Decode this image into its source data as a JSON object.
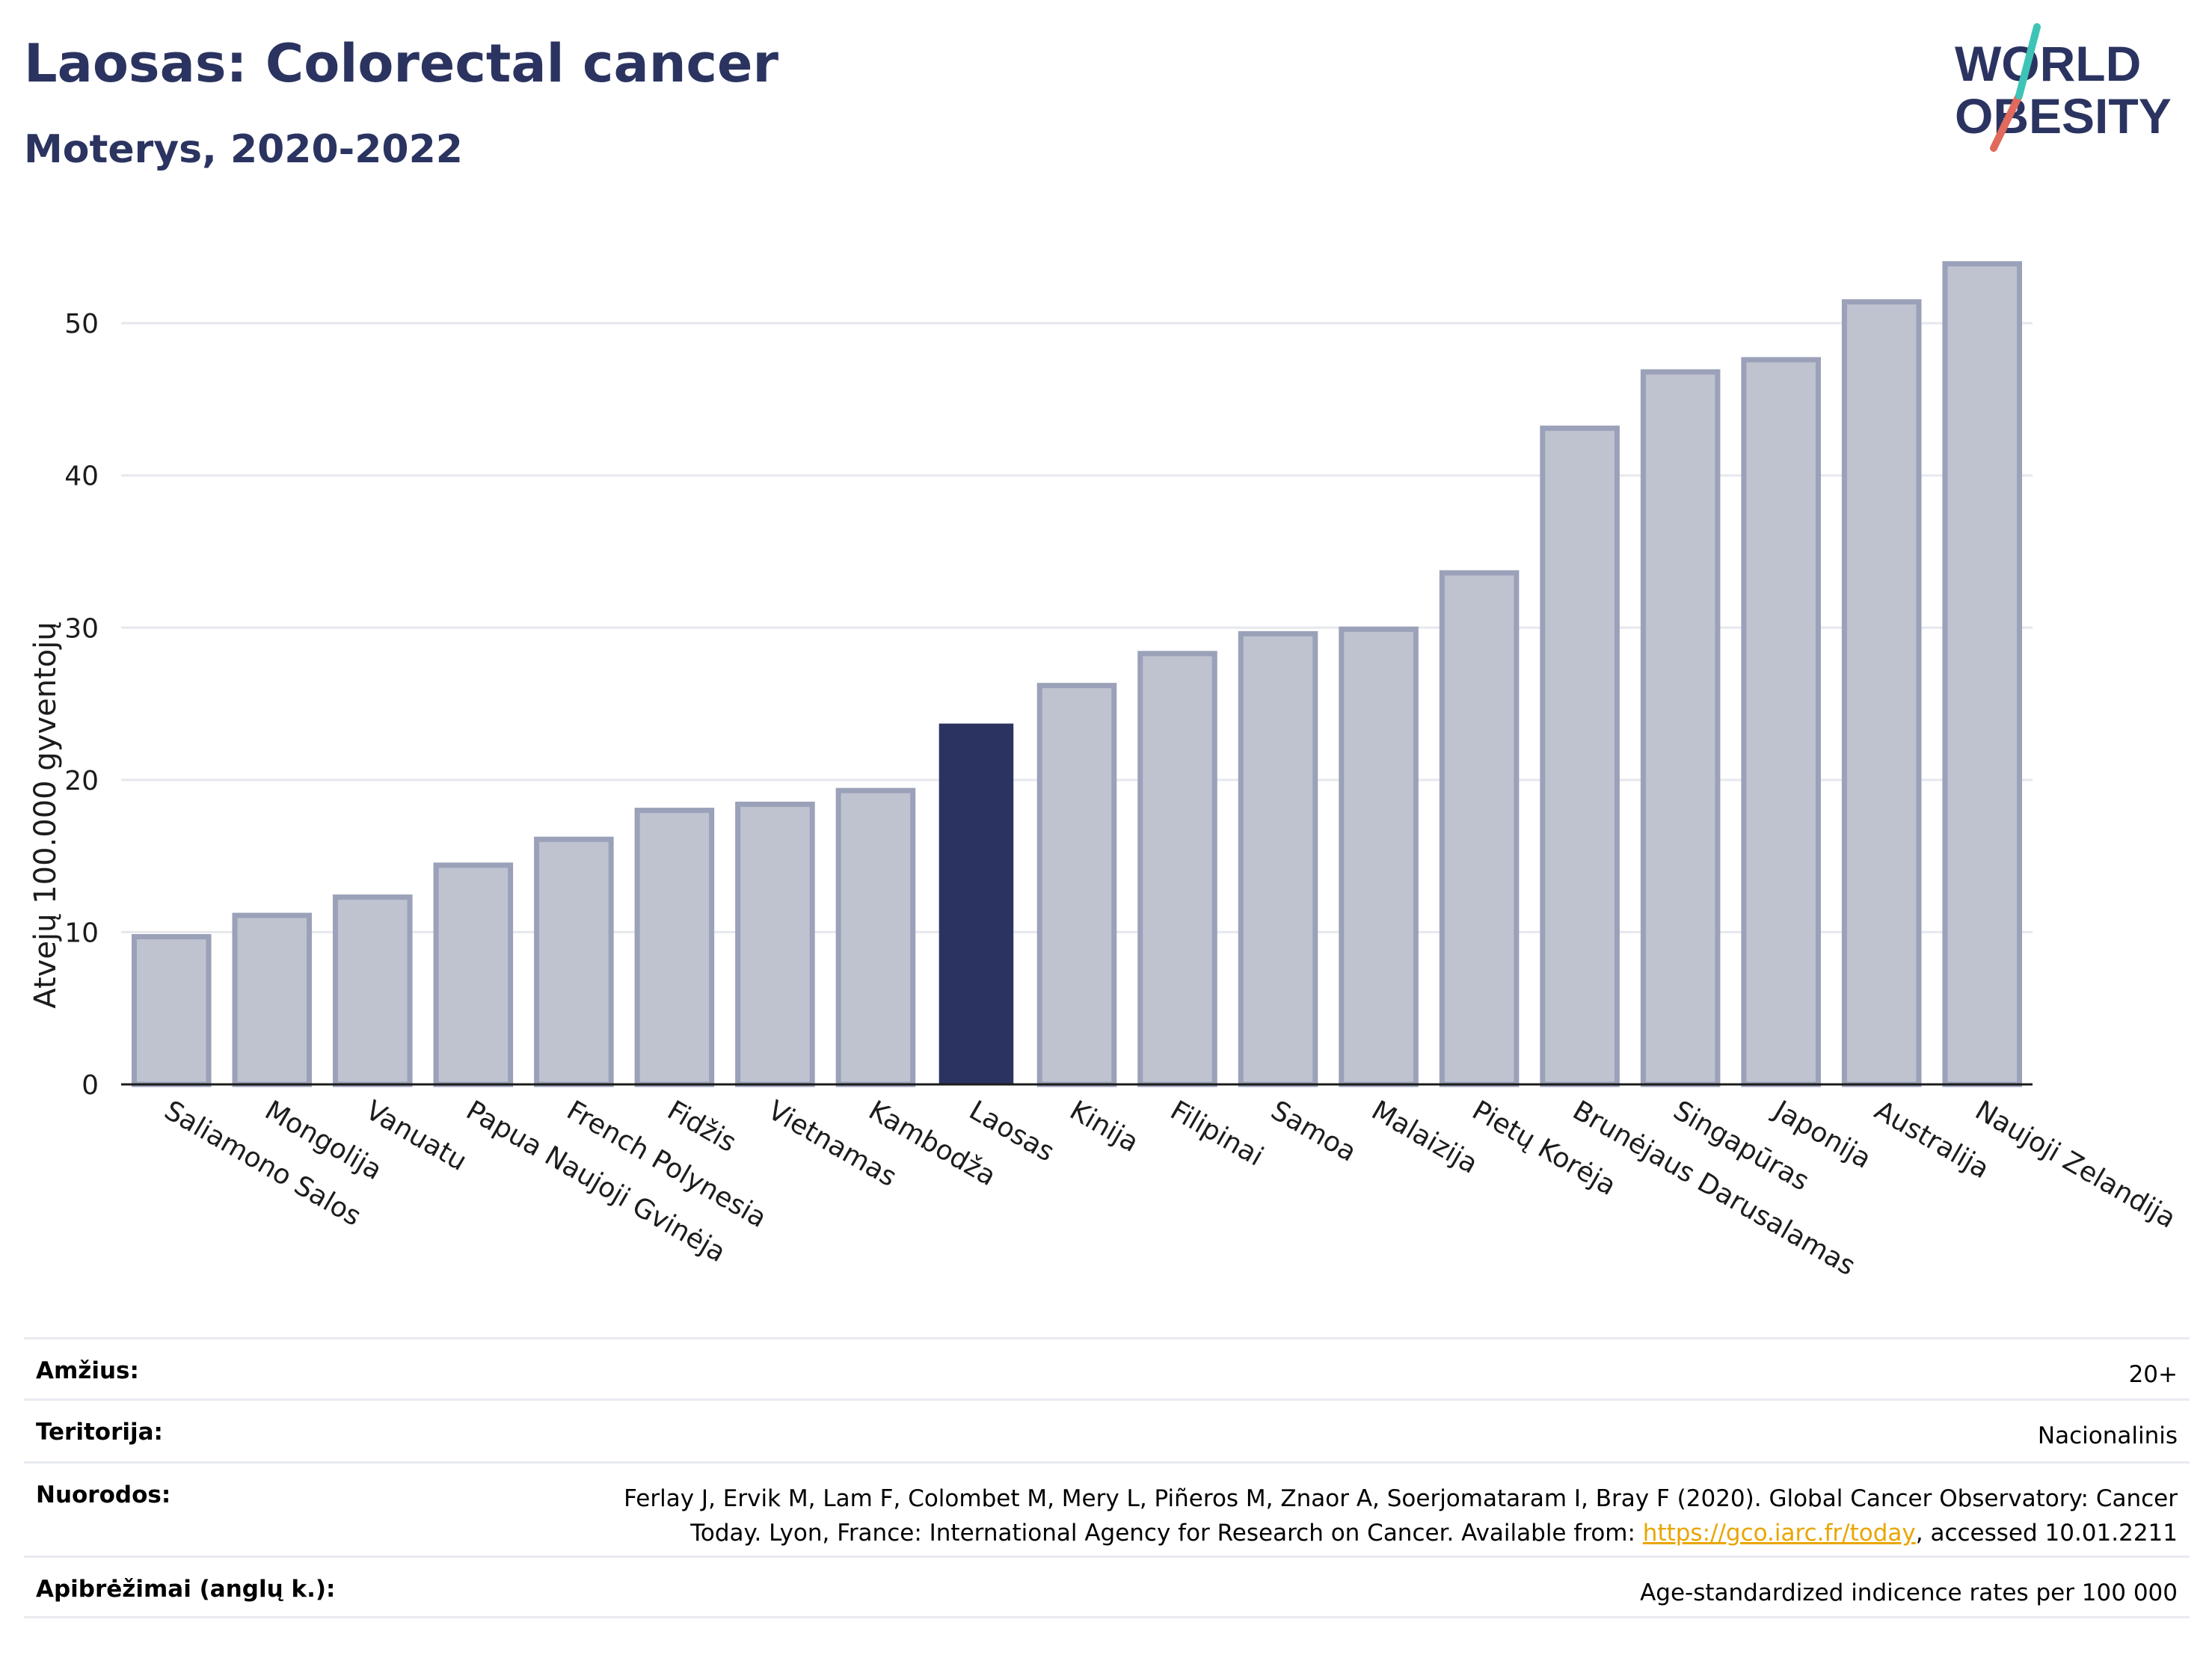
{
  "header": {
    "title": "Laosas: Colorectal cancer",
    "subtitle": "Moterys, 2020-2022"
  },
  "logo": {
    "line1": "WORLD",
    "line2": "OBESITY",
    "colors": [
      "#2b3460",
      "#e06a5c",
      "#3ec4b6"
    ]
  },
  "colors": {
    "bar": "#bfc3d0",
    "bar_border": "#9aa1b8",
    "highlight": "#2b3460",
    "grid": "#e6e8ee",
    "axis": "#1c1c1c"
  },
  "chart_data": {
    "type": "bar",
    "ylabel": "Atvejų 100.000 gyventojų",
    "ylim": [
      0,
      56
    ],
    "yticks": [
      0,
      10,
      20,
      30,
      40,
      50
    ],
    "grid": true,
    "highlight": "Laosas",
    "categories": [
      "Saliamono Salos",
      "Mongolija",
      "Vanuatu",
      "Papua Naujoji Gvinėja",
      "French Polynesia",
      "Fidžis",
      "Vietnamas",
      "Kambodža",
      "Laosas",
      "Kinija",
      "Filipinai",
      "Samoa",
      "Malaizija",
      "Pietų Korėja",
      "Brunėjaus Darusalamas",
      "Singapūras",
      "Japonija",
      "Australija",
      "Naujoji Zelandija"
    ],
    "values": [
      9.7,
      11.1,
      12.3,
      14.4,
      16.1,
      18.0,
      18.4,
      19.3,
      23.7,
      26.2,
      28.3,
      29.6,
      29.9,
      33.6,
      43.1,
      46.8,
      47.6,
      51.4,
      53.9
    ]
  },
  "info": {
    "age_label": "Amžius:",
    "age_value": "20+",
    "territory_label": "Teritorija:",
    "territory_value": "Nacionalinis",
    "refs_label": "Nuorodos:",
    "refs_text1": "Ferlay J, Ervik M, Lam F, Colombet M, Mery L, Piñeros M, Znaor A, Soerjomataram I, Bray F (2020). Global Cancer Observatory: Cancer",
    "refs_text2": "Today. Lyon, France: International Agency for Research on Cancer. Available from: ",
    "refs_link": "https://gco.iarc.fr/today",
    "refs_text3": ", accessed 10.01.2211",
    "def_label": "Apibrėžimai (anglų k.):",
    "def_value": "Age-standardized indicence rates per 100 000"
  }
}
